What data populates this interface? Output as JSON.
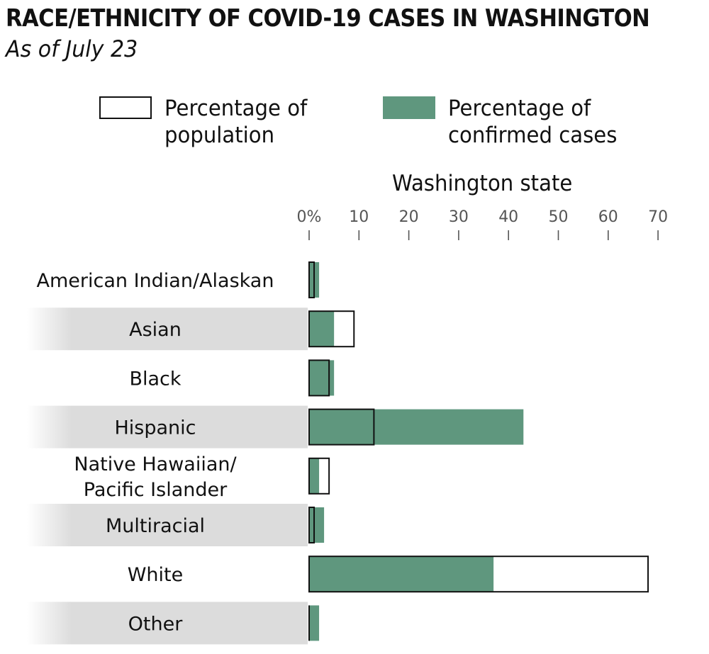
{
  "title": "RACE/ETHNICITY OF COVID-19 CASES IN WASHINGTON",
  "subtitle": "As of July 23",
  "legend": {
    "population_label": "Percentage of population",
    "cases_label": "Percentage of confirmed cases"
  },
  "colors": {
    "cases_fill": "#5f977e",
    "population_outline": "#111111",
    "row_shade": "#dcdcdc",
    "tick_color": "#555555"
  },
  "chart_data": {
    "type": "bar",
    "orientation": "horizontal",
    "panel_title": "Washington state",
    "categories": [
      "American Indian/Alaskan",
      "Asian",
      "Black",
      "Hispanic",
      "Native Hawaiian/ Pacific Islander",
      "Multiracial",
      "White",
      "Other"
    ],
    "series": [
      {
        "name": "Percentage of population",
        "values": [
          1,
          9,
          4,
          13,
          4,
          1,
          68,
          0
        ]
      },
      {
        "name": "Percentage of confirmed cases",
        "values": [
          2,
          5,
          5,
          43,
          2,
          3,
          37,
          2
        ]
      }
    ],
    "xlim": [
      0,
      70
    ],
    "ticks": [
      0,
      10,
      20,
      30,
      40,
      50,
      60,
      70
    ],
    "tick_labels": [
      "0%",
      "10",
      "20",
      "30",
      "40",
      "50",
      "60",
      "70"
    ],
    "grid": false,
    "legend_position": "top"
  }
}
